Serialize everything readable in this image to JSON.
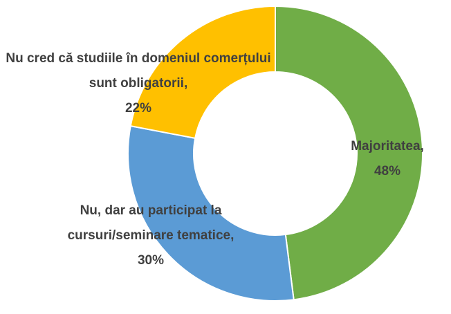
{
  "chart_data": {
    "type": "donut",
    "categories": [
      "Majoritatea,",
      "Nu, dar au participat la cursuri/seminare tematice,",
      "Nu cred că studiile în domeniul comerțului sunt obligatorii,"
    ],
    "values": [
      48,
      30,
      22
    ],
    "value_labels": [
      "48%",
      "30%",
      "22%"
    ],
    "colors": [
      "#70ad47",
      "#5b9bd5",
      "#ffc000"
    ]
  }
}
